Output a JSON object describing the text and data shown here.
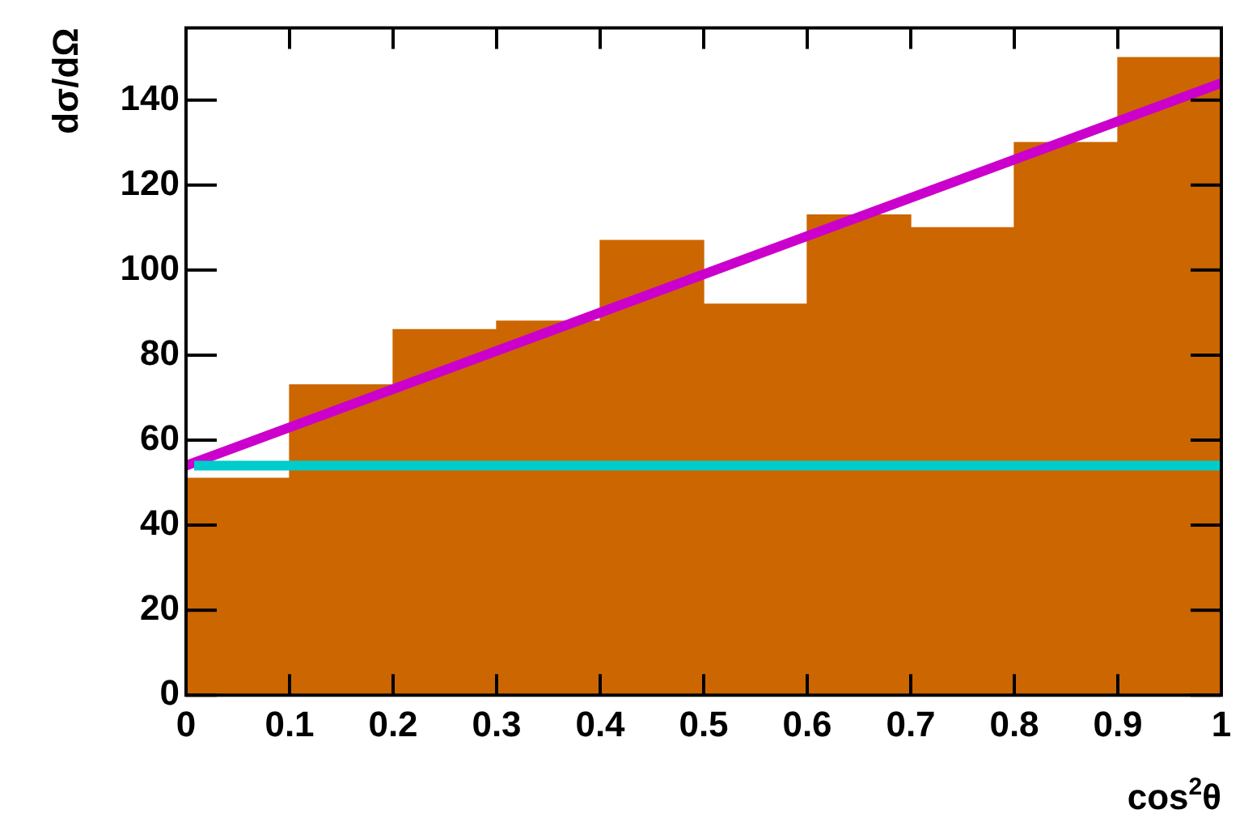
{
  "chart_data": {
    "type": "histogram",
    "xlabel": "cos$^{2}$θ",
    "ylabel": "dσ/dΩ",
    "bins": [
      0,
      0.1,
      0.2,
      0.3,
      0.4,
      0.5,
      0.6,
      0.7,
      0.8,
      0.9,
      1
    ],
    "values": [
      51,
      73,
      86,
      88,
      107,
      92,
      113,
      110,
      130,
      150
    ],
    "color": "#cc6600",
    "series": [
      {
        "type": "line",
        "x": [
          0,
          1
        ],
        "values": [
          54,
          144
        ],
        "color": "#cc00cc"
      }
    ],
    "ref_lines": [
      {
        "axis": "y",
        "value": 54,
        "color": "#00cccc"
      }
    ],
    "xlim": [
      0,
      1
    ],
    "xticks": [
      0,
      0.1,
      0.2,
      0.3,
      0.4,
      0.5,
      0.6,
      0.7,
      0.8,
      0.9,
      1
    ],
    "ylim": [
      0,
      157
    ],
    "yticks": [
      0,
      20,
      40,
      60,
      80,
      100,
      120,
      140
    ],
    "grid": false,
    "legend": false,
    "marker": "none"
  }
}
